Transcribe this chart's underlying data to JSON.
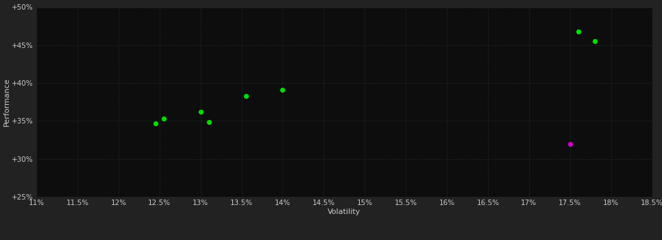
{
  "background_color": "#0a0a0a",
  "plot_bg_color": "#0d0d0d",
  "outer_bg_color": "#222222",
  "grid_color": "#2a3a2a",
  "grid_linestyle": ":",
  "xlabel": "Volatility",
  "ylabel": "Performance",
  "xlim": [
    0.11,
    0.185
  ],
  "ylim": [
    0.25,
    0.5
  ],
  "xtick_values": [
    0.11,
    0.115,
    0.12,
    0.125,
    0.13,
    0.135,
    0.14,
    0.145,
    0.15,
    0.155,
    0.16,
    0.165,
    0.17,
    0.175,
    0.18,
    0.185
  ],
  "ytick_values": [
    0.25,
    0.3,
    0.35,
    0.4,
    0.45,
    0.5
  ],
  "green_points": [
    [
      0.1245,
      0.347
    ],
    [
      0.1255,
      0.353
    ],
    [
      0.13,
      0.362
    ],
    [
      0.131,
      0.349
    ],
    [
      0.1355,
      0.383
    ],
    [
      0.14,
      0.391
    ],
    [
      0.176,
      0.468
    ],
    [
      0.178,
      0.455
    ]
  ],
  "magenta_points": [
    [
      0.175,
      0.32
    ]
  ],
  "green_color": "#00dd00",
  "magenta_color": "#cc00cc",
  "point_size": 18,
  "axis_label_color": "#cccccc",
  "tick_label_color": "#cccccc",
  "axis_label_fontsize": 8,
  "tick_fontsize": 7.5
}
